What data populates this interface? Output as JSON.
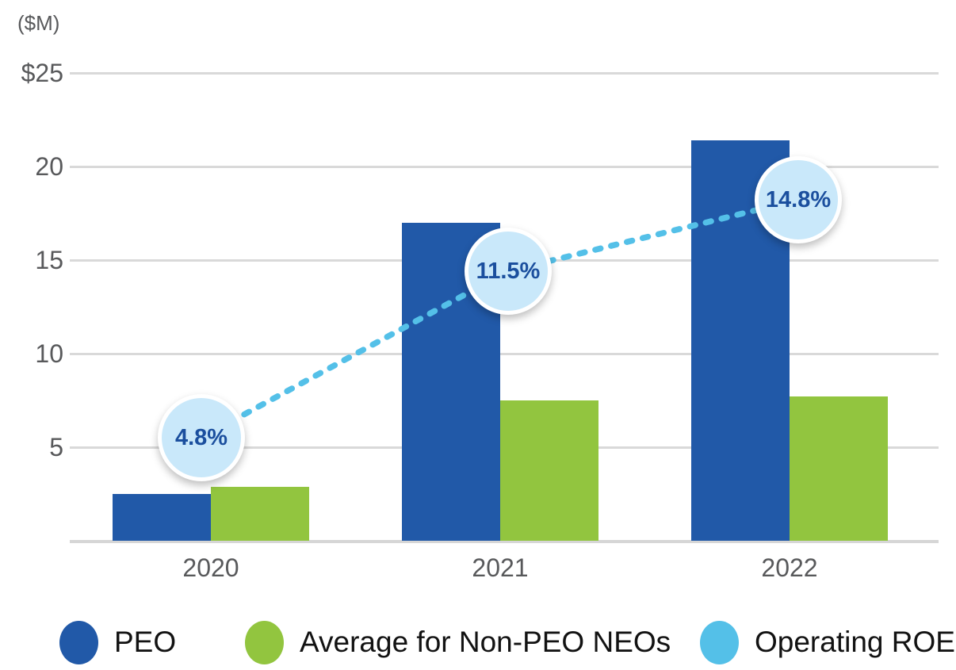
{
  "chart_data": {
    "type": "bar",
    "title": "",
    "unit_label": "($M)",
    "categories": [
      "2020",
      "2021",
      "2022"
    ],
    "series": [
      {
        "key": "peo",
        "name": "PEO",
        "type": "bar",
        "color": "#2159A8",
        "values": [
          2.5,
          17.0,
          21.4
        ]
      },
      {
        "key": "non-peo-neos",
        "name": "Average for Non-PEO NEOs",
        "type": "bar",
        "color": "#92C53F",
        "values": [
          2.9,
          7.5,
          7.7
        ]
      },
      {
        "key": "operating-roe",
        "name": "Operating ROE",
        "type": "line",
        "style": "dotted",
        "color": "#54C0E8",
        "values": [
          4.8,
          11.5,
          14.8
        ],
        "labels": [
          "4.8%",
          "11.5%",
          "14.8%"
        ],
        "marker_fill": "#C9E8FA",
        "marker_border": "#FFFFFF",
        "label_color": "#1B4F9E"
      }
    ],
    "y_axis": {
      "range": [
        0,
        25
      ],
      "ticks": [
        {
          "value": 25,
          "label": "$25"
        },
        {
          "value": 20,
          "label": "20"
        },
        {
          "value": 15,
          "label": "15"
        },
        {
          "value": 10,
          "label": "10"
        },
        {
          "value": 5,
          "label": "5"
        }
      ],
      "gridlines": true,
      "gridline_color": "#D9D9D9"
    },
    "x_axis": {
      "labels": [
        "2020",
        "2021",
        "2022"
      ],
      "text_color": "#58595B"
    },
    "legend": {
      "position": "bottom",
      "items": [
        {
          "key": "peo",
          "label": "PEO",
          "color": "#2159A8"
        },
        {
          "key": "non-peo-neos",
          "label": "Average for Non-PEO NEOs",
          "color": "#92C53F"
        },
        {
          "key": "operating-roe",
          "label": "Operating ROE",
          "color": "#54C0E8"
        }
      ]
    }
  }
}
